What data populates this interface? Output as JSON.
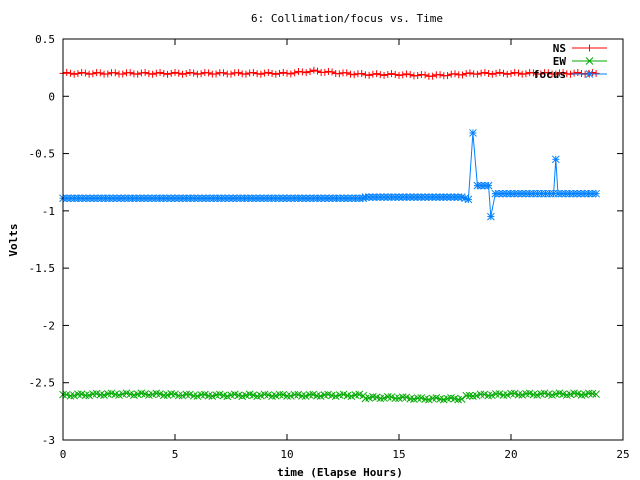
{
  "chart_data": {
    "type": "line",
    "title": "6: Collimation/focus vs. Time",
    "xlabel": "time (Elapse Hours)",
    "ylabel": "Volts",
    "xlim": [
      0,
      25
    ],
    "ylim": [
      -3,
      0.5
    ],
    "x_ticks": [
      0,
      5,
      10,
      15,
      20,
      25
    ],
    "x_tick_labels": [
      "0",
      "5",
      "10",
      "15",
      "20",
      "25"
    ],
    "y_ticks": [
      0.5,
      0,
      -0.5,
      -1,
      -1.5,
      -2,
      -2.5,
      -3
    ],
    "y_tick_labels": [
      "0.5",
      "0",
      "-0.5",
      "-1",
      "-1.5",
      "-2",
      "-2.5",
      "-3"
    ],
    "grid": false,
    "legend_position": "top-right",
    "series": [
      {
        "name": "NS",
        "color": "#ff0000",
        "marker": "plus",
        "points": [
          [
            0,
            0.2
          ],
          [
            2,
            0.2
          ],
          [
            4,
            0.2
          ],
          [
            6,
            0.2
          ],
          [
            8,
            0.2
          ],
          [
            10,
            0.2
          ],
          [
            11.2,
            0.22
          ],
          [
            12.5,
            0.2
          ],
          [
            13.5,
            0.19
          ],
          [
            15,
            0.19
          ],
          [
            16.5,
            0.18
          ],
          [
            17.5,
            0.19
          ],
          [
            18.5,
            0.2
          ],
          [
            20,
            0.2
          ],
          [
            22,
            0.2
          ],
          [
            23.8,
            0.2
          ]
        ]
      },
      {
        "name": "EW",
        "color": "#00aa00",
        "marker": "cross",
        "points": [
          [
            0,
            -2.61
          ],
          [
            2,
            -2.6
          ],
          [
            4,
            -2.6
          ],
          [
            6,
            -2.61
          ],
          [
            8,
            -2.61
          ],
          [
            10,
            -2.61
          ],
          [
            12,
            -2.61
          ],
          [
            13.4,
            -2.61
          ],
          [
            13.5,
            -2.63
          ],
          [
            15,
            -2.63
          ],
          [
            16,
            -2.64
          ],
          [
            17,
            -2.64
          ],
          [
            17.8,
            -2.64
          ],
          [
            18,
            -2.62
          ],
          [
            18.3,
            -2.61
          ],
          [
            20,
            -2.6
          ],
          [
            22,
            -2.6
          ],
          [
            23.8,
            -2.6
          ]
        ]
      },
      {
        "name": "focus",
        "color": "#0080ff",
        "marker": "star",
        "points": [
          [
            0,
            -0.89
          ],
          [
            5,
            -0.89
          ],
          [
            10,
            -0.89
          ],
          [
            13.4,
            -0.89
          ],
          [
            13.5,
            -0.88
          ],
          [
            16,
            -0.88
          ],
          [
            17.8,
            -0.88
          ],
          [
            18.1,
            -0.9
          ],
          [
            18.3,
            -0.32
          ],
          [
            18.5,
            -0.78
          ],
          [
            19,
            -0.78
          ],
          [
            19.1,
            -1.05
          ],
          [
            19.3,
            -0.85
          ],
          [
            21,
            -0.85
          ],
          [
            21.9,
            -0.85
          ],
          [
            22,
            -0.55
          ],
          [
            22.1,
            -0.85
          ],
          [
            23.8,
            -0.85
          ]
        ]
      }
    ]
  }
}
